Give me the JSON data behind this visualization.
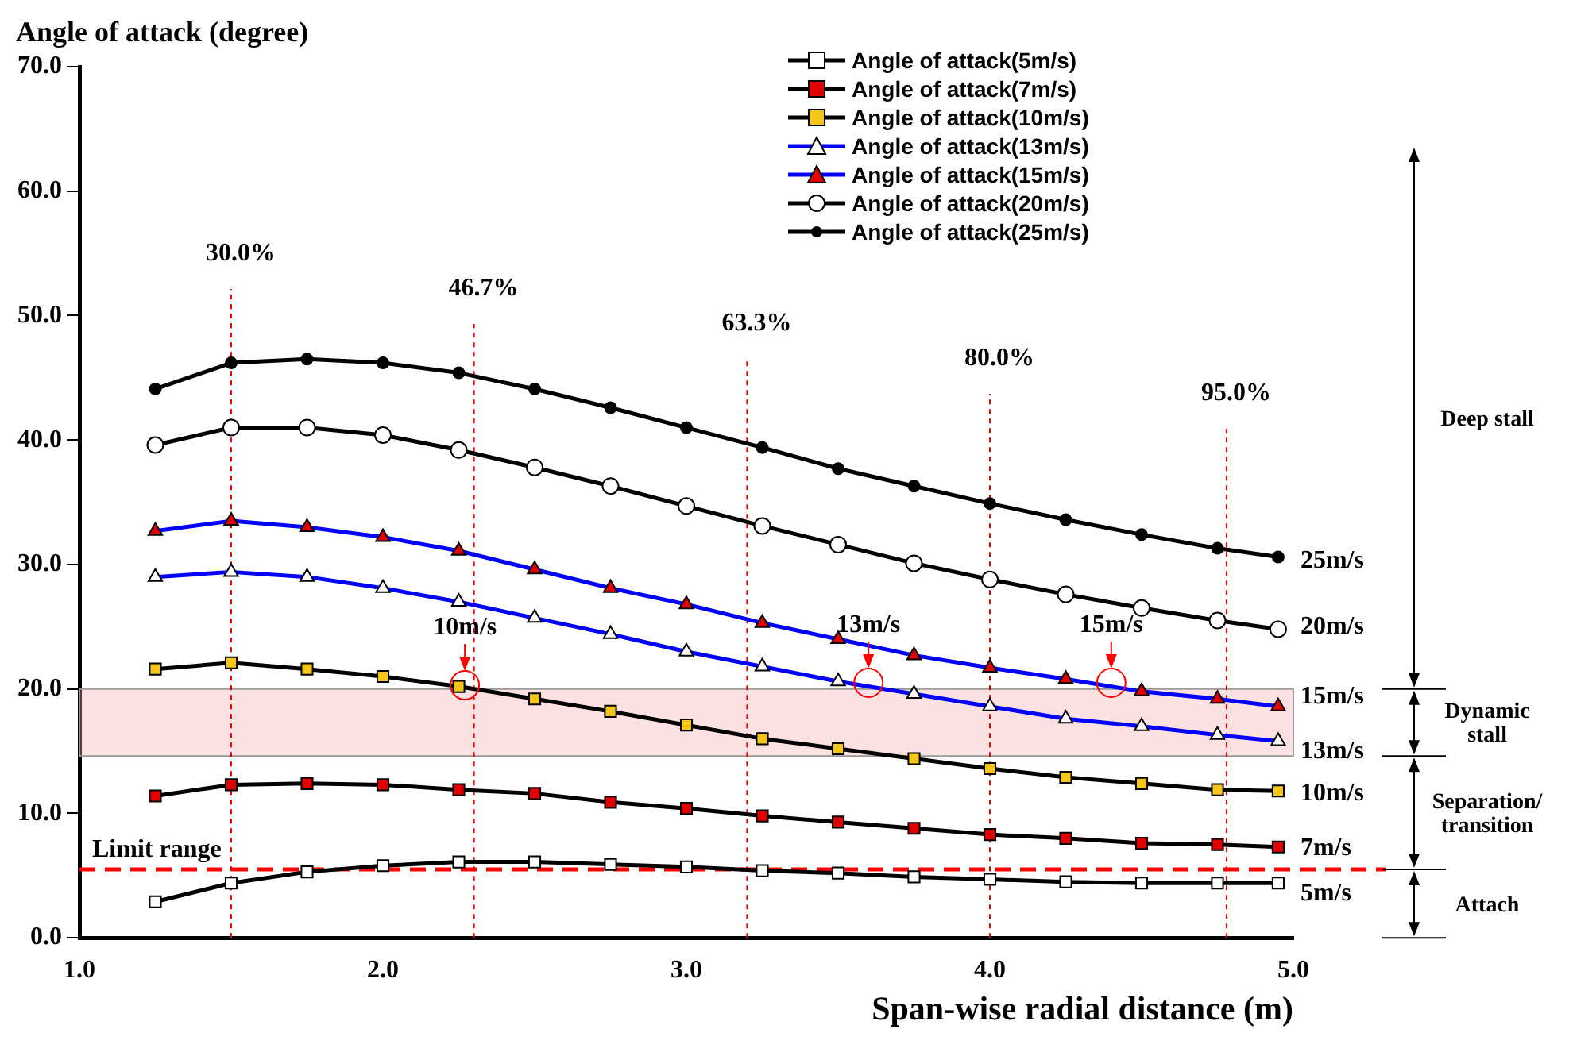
{
  "chart_data": {
    "type": "line",
    "ylabel": "Angle of attack (degree)",
    "xlabel": "Span-wise radial distance (m)",
    "x": [
      1.25,
      1.5,
      1.75,
      2.0,
      2.25,
      2.5,
      2.75,
      3.0,
      3.25,
      3.5,
      3.75,
      4.0,
      4.25,
      4.5,
      4.75,
      4.95
    ],
    "xlim": [
      1.0,
      5.0
    ],
    "xticks": [
      {
        "value": 1,
        "label": "1.0"
      },
      {
        "value": 2,
        "label": "2.0"
      },
      {
        "value": 3,
        "label": "3.0"
      },
      {
        "value": 4,
        "label": "4.0"
      },
      {
        "value": 5,
        "label": "5.0"
      }
    ],
    "ylim": [
      0,
      70
    ],
    "yticks": [
      {
        "value": 0,
        "label": "0.0"
      },
      {
        "value": 10,
        "label": "10.0"
      },
      {
        "value": 20,
        "label": "20.0"
      },
      {
        "value": 30,
        "label": "30.0"
      },
      {
        "value": 40,
        "label": "40.0"
      },
      {
        "value": 50,
        "label": "50.0"
      },
      {
        "value": 60,
        "label": "60.0"
      },
      {
        "value": 70,
        "label": "70.0"
      }
    ],
    "grid": false,
    "legend": "top right",
    "series": [
      {
        "name": "Angle of attack(5m/s)",
        "color": "#000000",
        "marker": "square",
        "colors": [
          "#ffffff",
          "#ffffff",
          "#ffffff",
          "#ffffff",
          "#ffffff",
          "#ffffff",
          "#ffffff",
          "#ffffff",
          "#ffffff",
          "#ffffff",
          "#ffffff",
          "#ffffff",
          "#ffffff",
          "#ffffff",
          "#ffffff",
          "#ffffff"
        ],
        "values": [
          2.9,
          4.4,
          5.3,
          5.8,
          6.1,
          6.1,
          5.9,
          5.7,
          5.4,
          5.2,
          4.9,
          4.7,
          4.5,
          4.4,
          4.4,
          4.4
        ]
      },
      {
        "name": "Angle of attack(7m/s)",
        "color": "#000000",
        "marker": "square",
        "colors": [
          "#e00000",
          "#e00000",
          "#e00000",
          "#e00000",
          "#e00000",
          "#e00000",
          "#e00000",
          "#e00000",
          "#e00000",
          "#e00000",
          "#e00000",
          "#e00000",
          "#e00000",
          "#e00000",
          "#e00000",
          "#e00000"
        ],
        "values": [
          11.4,
          12.3,
          12.4,
          12.3,
          11.9,
          11.6,
          10.9,
          10.4,
          9.8,
          9.3,
          8.8,
          8.3,
          8.0,
          7.6,
          7.5,
          7.3
        ]
      },
      {
        "name": "Angle of attack(10m/s)",
        "color": "#000000",
        "marker": "square",
        "colors": [
          "#f5c518",
          "#f5c518",
          "#f5c518",
          "#f5c518",
          "#f5c518",
          "#f5c518",
          "#f5c518",
          "#f5c518",
          "#f5c518",
          "#f5c518",
          "#f5c518",
          "#f5c518",
          "#f5c518",
          "#f5c518",
          "#f5c518",
          "#f5c518"
        ],
        "values": [
          21.6,
          22.1,
          21.6,
          21.0,
          20.2,
          19.2,
          18.2,
          17.1,
          16.0,
          15.2,
          14.4,
          13.6,
          12.9,
          12.4,
          11.9,
          11.8
        ]
      },
      {
        "name": "Angle of attack(13m/s)",
        "color": "#0000ff",
        "marker": "triangle",
        "colors": [
          "#ffffff",
          "#ffffff",
          "#ffffff",
          "#ffffff",
          "#ffffff",
          "#ffffff",
          "#ffffff",
          "#ffffff",
          "#ffffff",
          "#ffffff",
          "#ffffff",
          "#ffffff",
          "#ffffff",
          "#ffffff",
          "#ffffff",
          "#ffffff"
        ],
        "values": [
          29.0,
          29.4,
          29.0,
          28.1,
          27.0,
          25.7,
          24.4,
          23.0,
          21.8,
          20.6,
          19.6,
          18.6,
          17.6,
          17.0,
          16.3,
          15.8
        ]
      },
      {
        "name": "Angle of attack(15m/s)",
        "color": "#0000ff",
        "marker": "triangle",
        "colors": [
          "#e00000",
          "#e00000",
          "#e00000",
          "#e00000",
          "#e00000",
          "#e00000",
          "#e00000",
          "#e00000",
          "#e00000",
          "#e00000",
          "#e00000",
          "#e00000",
          "#e00000",
          "#e00000",
          "#e00000",
          "#e00000"
        ],
        "values": [
          32.7,
          33.5,
          33.0,
          32.2,
          31.1,
          29.6,
          28.1,
          26.8,
          25.3,
          24.0,
          22.7,
          21.7,
          20.8,
          19.8,
          19.2,
          18.6
        ]
      },
      {
        "name": "Angle of attack(20m/s)",
        "color": "#000000",
        "marker": "circle",
        "colors": [
          "#ffffff",
          "#ffffff",
          "#ffffff",
          "#ffffff",
          "#ffffff",
          "#ffffff",
          "#ffffff",
          "#ffffff",
          "#ffffff",
          "#ffffff",
          "#ffffff",
          "#ffffff",
          "#ffffff",
          "#ffffff",
          "#ffffff",
          "#ffffff"
        ],
        "values": [
          39.6,
          41.0,
          41.0,
          40.4,
          39.2,
          37.8,
          36.3,
          34.7,
          33.1,
          31.6,
          30.1,
          28.8,
          27.6,
          26.5,
          25.5,
          24.8
        ]
      },
      {
        "name": "Angle of attack(25m/s)",
        "color": "#000000",
        "marker": "circle",
        "colors": [
          "#000000",
          "#000000",
          "#000000",
          "#000000",
          "#000000",
          "#000000",
          "#000000",
          "#000000",
          "#000000",
          "#000000",
          "#000000",
          "#000000",
          "#000000",
          "#000000",
          "#000000",
          "#000000"
        ],
        "values": [
          44.1,
          46.2,
          46.5,
          46.2,
          45.4,
          44.1,
          42.6,
          41.0,
          39.4,
          37.7,
          36.3,
          34.9,
          33.6,
          32.4,
          31.3,
          30.6
        ]
      }
    ],
    "ref_lines": [
      {
        "axis": "x",
        "value": 1.5,
        "color": "#e00000",
        "line_style": "dotted"
      },
      {
        "axis": "x",
        "value": 2.3,
        "color": "#e00000",
        "line_style": "dotted"
      },
      {
        "axis": "x",
        "value": 3.2,
        "color": "#e00000",
        "line_style": "dotted"
      },
      {
        "axis": "x",
        "value": 4.0,
        "color": "#e00000",
        "line_style": "dotted"
      },
      {
        "axis": "x",
        "value": 4.78,
        "color": "#e00000",
        "line_style": "dotted"
      },
      {
        "axis": "y",
        "value": 5.5,
        "label": "Limit range",
        "color": "#ff0000",
        "line_style": "dashed"
      }
    ],
    "bands": [
      {
        "axis": "y",
        "from": 14.6,
        "to": 20.0,
        "color": "#f4a9a9"
      }
    ],
    "annotations": [
      "Deep stall",
      "Dynamic stall",
      "Separation/ transition",
      "Attach",
      "30.0%",
      "46.7%",
      "63.3%",
      "80.0%",
      "95.0%",
      {
        "text": "25m/s",
        "x": 4.95,
        "y": 30.5
      },
      {
        "text": "20m/s",
        "x": 4.95,
        "y": 25.2
      },
      {
        "text": "15m/s",
        "x": 4.95,
        "y": 19.6
      },
      {
        "text": "13m/s",
        "x": 4.95,
        "y": 15.2
      },
      {
        "text": "10m/s",
        "x": 4.95,
        "y": 11.8
      },
      {
        "text": "7m/s",
        "x": 4.95,
        "y": 7.4
      },
      {
        "text": "5m/s",
        "x": 4.95,
        "y": 3.8
      },
      {
        "text": "10m/s",
        "x": 2.27,
        "y": 20.3
      },
      {
        "text": "13m/s",
        "x": 3.6,
        "y": 20.5
      },
      {
        "text": "15m/s",
        "x": 4.4,
        "y": 20.5
      }
    ]
  }
}
